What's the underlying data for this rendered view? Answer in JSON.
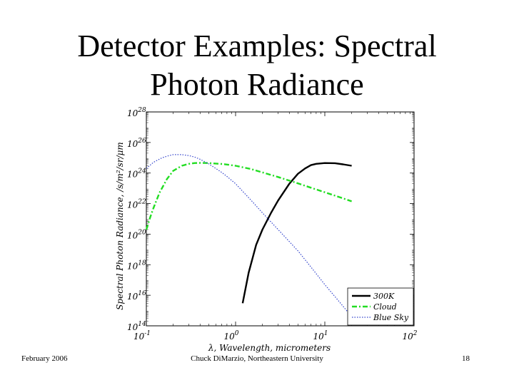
{
  "slide": {
    "title_line1": "Detector Examples: Spectral",
    "title_line2": "Photon Radiance"
  },
  "footer": {
    "date": "February 2006",
    "author": "Chuck DiMarzio, Northeastern University",
    "page": "18"
  },
  "colors": {
    "series_300K": "#000000",
    "series_cloud": "#22dd22",
    "series_bluesky": "#3344cc"
  },
  "chart_data": {
    "type": "line",
    "title": "",
    "xlabel": "λ, Wavelength, micrometers",
    "ylabel": "Spectral Photon Radiance, /s/m²/sr/μm",
    "xscale": "log",
    "yscale": "log",
    "xlim": [
      0.1,
      100
    ],
    "ylim": [
      100000000000000.0,
      1e+28
    ],
    "x_ticks": [
      {
        "value": 0.1,
        "base": "10",
        "exp": "-1"
      },
      {
        "value": 1,
        "base": "10",
        "exp": "0"
      },
      {
        "value": 10,
        "base": "10",
        "exp": "1"
      },
      {
        "value": 100,
        "base": "10",
        "exp": "2"
      }
    ],
    "y_ticks": [
      {
        "value": 100000000000000.0,
        "base": "10",
        "exp": "14"
      },
      {
        "value": 1e+16,
        "base": "10",
        "exp": "16"
      },
      {
        "value": 1e+18,
        "base": "10",
        "exp": "18"
      },
      {
        "value": 1e+20,
        "base": "10",
        "exp": "20"
      },
      {
        "value": 1e+22,
        "base": "10",
        "exp": "22"
      },
      {
        "value": 1e+24,
        "base": "10",
        "exp": "24"
      },
      {
        "value": 1e+26,
        "base": "10",
        "exp": "26"
      },
      {
        "value": 1e+28,
        "base": "10",
        "exp": "28"
      }
    ],
    "grid": false,
    "legend_position": "bottom-right",
    "series": [
      {
        "name": "300K",
        "style": "solid",
        "x": [
          1.2,
          1.4,
          1.7,
          2,
          2.5,
          3,
          4,
          5,
          6,
          7,
          8,
          10,
          13,
          16,
          20
        ],
        "y": [
          3000000000000000.0,
          3e+17,
          2e+19,
          2e+20,
          2.5e+21,
          1.6e+22,
          2e+23,
          9e+23,
          2e+24,
          3.3e+24,
          4e+24,
          4.5e+24,
          4.4e+24,
          3.7e+24,
          3e+24
        ]
      },
      {
        "name": "Cloud",
        "style": "dashdot",
        "x": [
          0.1,
          0.11,
          0.12,
          0.14,
          0.17,
          0.2,
          0.25,
          0.3,
          0.35,
          0.4,
          0.5,
          0.6,
          0.7,
          0.8,
          1,
          1.5,
          2,
          3,
          5,
          7,
          10,
          15,
          20
        ],
        "y": [
          2e+20,
          1.2e+21,
          5e+21,
          5e+22,
          4e+23,
          1.4e+24,
          3e+24,
          4e+24,
          4.5e+24,
          4.6e+24,
          4.5e+24,
          4.2e+24,
          3.9e+24,
          3.6e+24,
          3e+24,
          1.8e+24,
          1.1e+24,
          5.5e+23,
          2.1e+23,
          1.1e+23,
          5.5e+22,
          2.5e+22,
          1.4e+22
        ]
      },
      {
        "name": "Blue Sky",
        "style": "dotted",
        "x": [
          0.1,
          0.12,
          0.15,
          0.18,
          0.2,
          0.25,
          0.3,
          0.35,
          0.4,
          0.5,
          0.6,
          0.7,
          0.8,
          1,
          1.5,
          2,
          3,
          5,
          7,
          10,
          15,
          20
        ],
        "y": [
          2e+24,
          5e+24,
          1e+25,
          1.4e+25,
          1.6e+25,
          1.6e+25,
          1.4e+25,
          1.1e+25,
          8e+24,
          4e+24,
          2e+24,
          1.1e+24,
          6e+23,
          2e+23,
          1.6e+22,
          2.5e+21,
          2e+20,
          8e+18,
          7e+17,
          5e+16,
          3000000000000000.0,
          400000000000000.0
        ]
      }
    ]
  }
}
